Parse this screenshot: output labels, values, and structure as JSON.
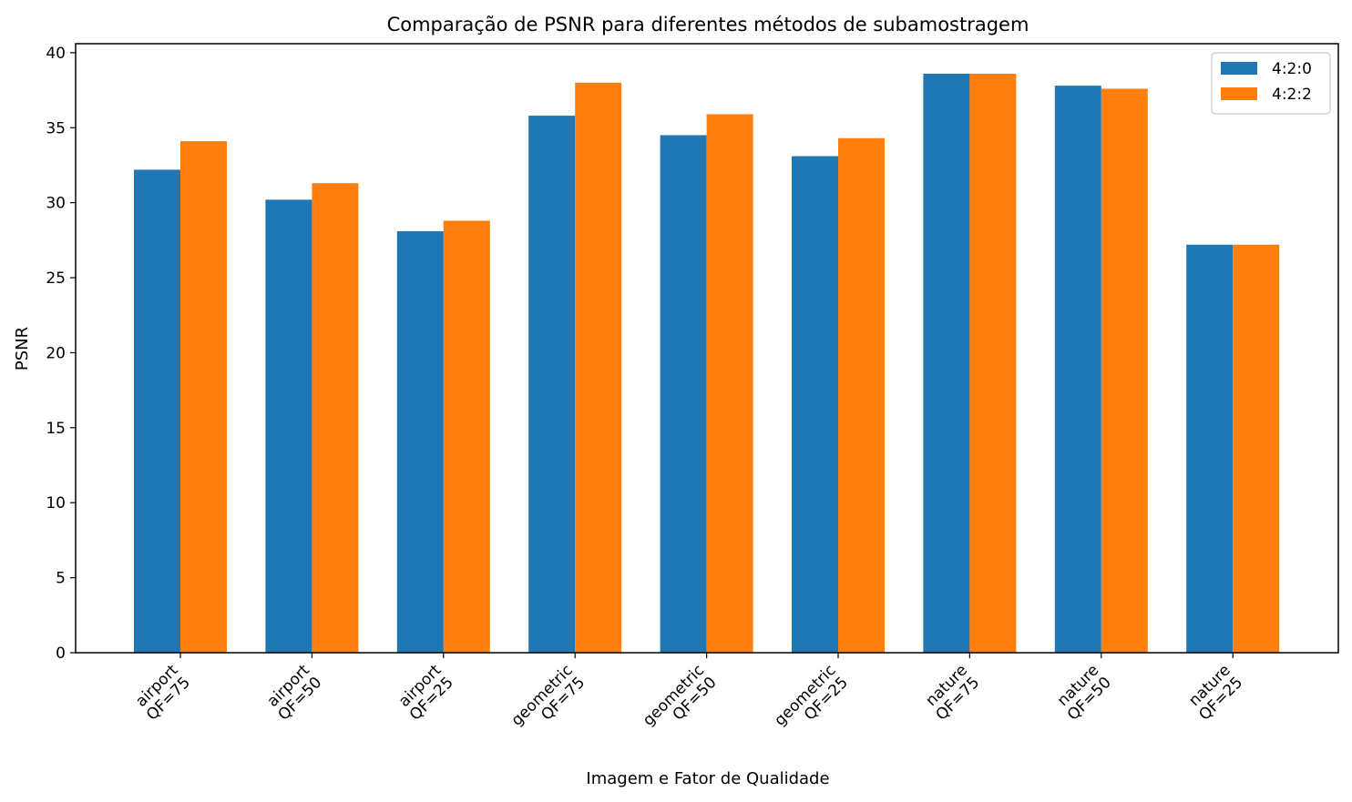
{
  "chart_data": {
    "type": "bar",
    "title": "Comparação de PSNR para diferentes métodos de subamostragem",
    "xlabel": "Imagem e Fator de Qualidade",
    "ylabel": "PSNR",
    "ylim": [
      0,
      40.6
    ],
    "yticks": [
      0,
      5,
      10,
      15,
      20,
      25,
      30,
      35,
      40
    ],
    "categories": [
      [
        "airport",
        "QF=75"
      ],
      [
        "airport",
        "QF=50"
      ],
      [
        "airport",
        "QF=25"
      ],
      [
        "geometric",
        "QF=75"
      ],
      [
        "geometric",
        "QF=50"
      ],
      [
        "geometric",
        "QF=25"
      ],
      [
        "nature",
        "QF=75"
      ],
      [
        "nature",
        "QF=50"
      ],
      [
        "nature",
        "QF=25"
      ]
    ],
    "series": [
      {
        "name": "4:2:0",
        "color": "#1f77b4",
        "values": [
          32.2,
          30.2,
          28.1,
          35.8,
          34.5,
          33.1,
          38.6,
          37.8,
          27.2
        ]
      },
      {
        "name": "4:2:2",
        "color": "#ff7f0e",
        "values": [
          34.1,
          31.3,
          28.8,
          38.0,
          35.9,
          34.3,
          38.6,
          37.6,
          27.2
        ]
      }
    ],
    "grid": false,
    "legend_position": "top-right"
  }
}
